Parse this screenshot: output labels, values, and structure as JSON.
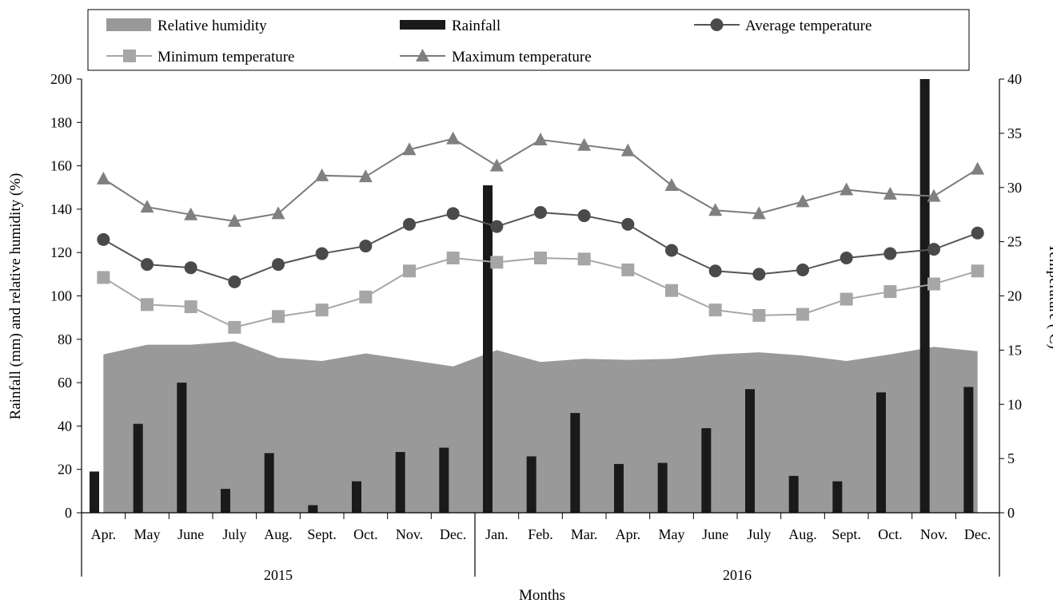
{
  "chart_data": {
    "type": "combo",
    "x_title": "Months",
    "y_left_label": "Rainfall (mm) and  relative humidity (%)",
    "y_right_label": "Temperature (ºC)",
    "y_left_lim": [
      0,
      200
    ],
    "y_right_lim": [
      0,
      40
    ],
    "y_left_ticks": [
      "0",
      "20",
      "40",
      "60",
      "80",
      "100",
      "120",
      "140",
      "160",
      "180",
      "200"
    ],
    "y_right_ticks": [
      "0",
      "5",
      "10",
      "15",
      "20",
      "25",
      "30",
      "35",
      "40"
    ],
    "groups": [
      {
        "label": "2015",
        "span": 9
      },
      {
        "label": "2016",
        "span": 12
      }
    ],
    "categories": [
      "Apr.",
      "May",
      "June",
      "July",
      "Aug.",
      "Sept.",
      "Oct.",
      "Nov.",
      "Dec.",
      "Jan.",
      "Feb.",
      "Mar.",
      "Apr.",
      "May",
      "June",
      "July",
      "Aug.",
      "Sept.",
      "Oct.",
      "Nov.",
      "Dec."
    ],
    "legend": {
      "humidity": "Relative humidity",
      "rainfall": "Rainfall",
      "avg": "Average temperature",
      "min": "Minimum temperature",
      "max": "Maximum temperature"
    },
    "relative_humidity": [
      73,
      77.5,
      77.5,
      79,
      71.5,
      70,
      73.5,
      70.5,
      67.5,
      75,
      69.5,
      71,
      70.5,
      71,
      73,
      74,
      72.5,
      70,
      73,
      76.5,
      74.5
    ],
    "rainfall": [
      19,
      41,
      60,
      11,
      27.5,
      3.5,
      14.5,
      28,
      30,
      151,
      26,
      46,
      22.5,
      23,
      39,
      57,
      17,
      14.5,
      55.5,
      200,
      58
    ],
    "avg_temperature": [
      25.2,
      22.9,
      22.6,
      21.3,
      22.9,
      23.9,
      24.6,
      26.6,
      27.6,
      26.4,
      27.7,
      27.4,
      26.6,
      24.2,
      22.3,
      22,
      22.4,
      23.5,
      23.9,
      24.3,
      25.8
    ],
    "min_temperature": [
      21.7,
      19.2,
      19,
      17.1,
      18.1,
      18.7,
      19.9,
      22.3,
      23.5,
      23.1,
      23.5,
      23.4,
      22.4,
      20.5,
      18.7,
      18.2,
      18.3,
      19.7,
      20.4,
      21.1,
      22.3
    ],
    "max_temperature": [
      30.8,
      28.2,
      27.5,
      26.9,
      27.6,
      31.1,
      31,
      33.5,
      34.5,
      32,
      34.4,
      33.9,
      33.4,
      30.2,
      27.9,
      27.6,
      28.7,
      29.8,
      29.4,
      29.2,
      31.7
    ],
    "colors": {
      "humidity": "#999999",
      "rainfall": "#1a1a1a",
      "avg": "#4a4a4a",
      "avg_line": "#555555",
      "min": "#a6a6a6",
      "max": "#808080",
      "max_line": "#7a7a7a"
    }
  }
}
